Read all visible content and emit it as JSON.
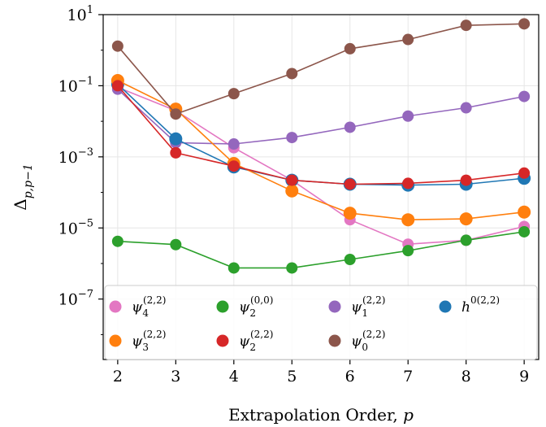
{
  "chart_data": {
    "type": "line",
    "xlabel": "Extrapolation Order, ",
    "xlabel_var": "p",
    "ylabel": "Δ",
    "ylabel_sub": "p,p−1",
    "yscale": "log",
    "xlim": [
      1.75,
      9.25
    ],
    "ylim_log10": [
      -8.7,
      1.0
    ],
    "x_ticks": [
      2,
      3,
      4,
      5,
      6,
      7,
      8,
      9
    ],
    "y_ticks": [
      {
        "exp": 1,
        "base": "10",
        "sup": "1"
      },
      {
        "exp": -1,
        "base": "10",
        "sup": "−1"
      },
      {
        "exp": -3,
        "base": "10",
        "sup": "−3"
      },
      {
        "exp": -5,
        "base": "10",
        "sup": "−5"
      },
      {
        "exp": -7,
        "base": "10",
        "sup": "−7"
      }
    ],
    "grid": true,
    "legend_position": "lower",
    "x": [
      2,
      3,
      4,
      5,
      6,
      7,
      8,
      9
    ],
    "series": [
      {
        "name": "ψ4",
        "sub": "4",
        "sup": "(2,2)",
        "color": "#e377c2",
        "marker_size": 7,
        "values": [
          0.09,
          0.02,
          0.0018,
          0.00022,
          1.7e-05,
          3.5e-06,
          4.5e-06,
          1.1e-05
        ]
      },
      {
        "name": "ψ2(0,0)",
        "sub": "2",
        "sup": "(0,0)",
        "color": "#2ca02c",
        "marker_size": 7,
        "values": [
          4.2e-06,
          3.4e-06,
          7.5e-07,
          7.5e-07,
          1.3e-06,
          2.3e-06,
          4.5e-06,
          7.8e-06
        ]
      },
      {
        "name": "ψ1",
        "sub": "1",
        "sup": "(2,2)",
        "color": "#9467bd",
        "marker_size": 7,
        "values": [
          0.08,
          0.0025,
          0.0023,
          0.0035,
          0.0068,
          0.014,
          0.024,
          0.05
        ]
      },
      {
        "name": "h",
        "sub": "",
        "sup": "0(2,2)",
        "color": "#1f77b4",
        "marker_size": 8,
        "values": [
          0.11,
          0.0032,
          0.00052,
          0.00022,
          0.00017,
          0.00016,
          0.00017,
          0.00025
        ]
      },
      {
        "name": "ψ3",
        "sub": "3",
        "sup": "(2,2)",
        "color": "#ff7f0e",
        "marker_size": 8,
        "values": [
          0.14,
          0.022,
          0.00065,
          0.00011,
          2.6e-05,
          1.7e-05,
          1.8e-05,
          2.8e-05
        ]
      },
      {
        "name": "ψ2(2,2)",
        "sub": "2",
        "sup": "(2,2)",
        "color": "#d62728",
        "marker_size": 7,
        "values": [
          0.1,
          0.0013,
          0.00055,
          0.00022,
          0.00017,
          0.00018,
          0.00022,
          0.00035
        ]
      },
      {
        "name": "ψ0",
        "sub": "0",
        "sup": "(2,2)",
        "color": "#8c564b",
        "marker_size": 7,
        "values": [
          1.3,
          0.016,
          0.06,
          0.22,
          1.1,
          2.0,
          5.0,
          5.5
        ]
      }
    ],
    "legend_order": [
      0,
      1,
      2,
      3,
      4,
      5,
      6
    ]
  }
}
